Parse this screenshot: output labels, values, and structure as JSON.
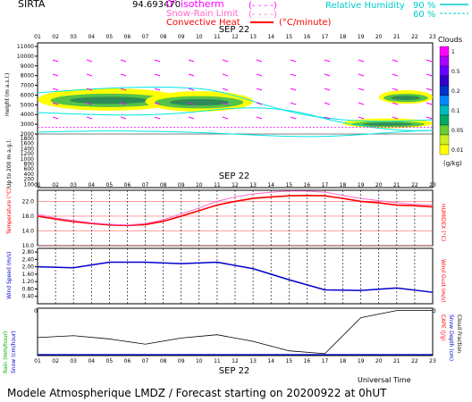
{
  "header": {
    "site": "SIRTA",
    "coord": "94.693470",
    "legend_isotherm": "0° isotherm",
    "legend_snow_rain": "Snow-Rain Limit",
    "legend_convective": "Convective Heat",
    "legend_convective_unit": "(°C/minute)",
    "legend_rh_label": "Relative Humidity",
    "legend_rh_90": "90 %",
    "legend_rh_60": "60 %"
  },
  "footer": {
    "title": "Modele Atmospherique LMDZ / Forecast starting on 20200922 at 0hUT",
    "universal_time": "Universal Time"
  },
  "colors": {
    "cyan": "#00e5e5",
    "magenta": "#ff00ff",
    "red": "#ff0000",
    "blue": "#0000cc",
    "yellow": "#ffff00",
    "green_light": "#55c24a",
    "green_dark": "#2e8b57",
    "bg": "#ffffff"
  },
  "chart_data": [
    {
      "type": "heatmap",
      "title": "SEP 22",
      "hours": [
        "01",
        "02",
        "03",
        "04",
        "05",
        "06",
        "07",
        "08",
        "09",
        "10",
        "11",
        "12",
        "13",
        "14",
        "15",
        "16",
        "17",
        "18",
        "19",
        "20",
        "21",
        "22",
        "23"
      ],
      "ylabel": "Height (m a.s.l.)",
      "ylabel_low": "Up to 200 m a.g.l.",
      "yticks_upper": [
        "11000",
        "10000",
        "9000",
        "8000",
        "7000",
        "6000",
        "5000",
        "4000",
        "3000",
        "2000"
      ],
      "yticks_lower": [
        "1800",
        "1600",
        "1400",
        "1200",
        "1000",
        "800",
        "600",
        "400",
        "200",
        "100"
      ],
      "isotherm_0c_m": 2700,
      "colorbar": {
        "label": "Clouds",
        "unit": "(g/kg)",
        "ticks": [
          "1",
          "0.5",
          "0.2",
          "0.1",
          "0.05",
          "0.01"
        ]
      },
      "cloud_layers": [
        {
          "from_hour": 1,
          "to_hour": 9,
          "base_m": 4400,
          "top_m": 6700
        },
        {
          "from_hour": 7,
          "to_hour": 13,
          "base_m": 4300,
          "top_m": 6400
        },
        {
          "from_hour": 18,
          "to_hour": 23,
          "base_m": 2600,
          "top_m": 3600
        },
        {
          "from_hour": 20,
          "to_hour": 23,
          "base_m": 5100,
          "top_m": 6500
        }
      ]
    },
    {
      "type": "line",
      "title": "SEP 22",
      "ylabel": "Temperature (°C)",
      "ylabel_right": "HUMIDEX (°C)",
      "yticks": [
        "10.0",
        "14.0",
        "18.0",
        "22.0"
      ],
      "ylim": [
        10,
        25
      ],
      "x": [
        1,
        2,
        3,
        4,
        5,
        6,
        7,
        8,
        9,
        10,
        11,
        12,
        13,
        14,
        15,
        16,
        17,
        18,
        19,
        20,
        21,
        22,
        23
      ],
      "series": [
        {
          "name": "Temperature",
          "values": [
            18.0,
            17.2,
            16.5,
            16.0,
            15.6,
            15.5,
            15.7,
            16.6,
            18.0,
            19.5,
            21.0,
            22.0,
            22.8,
            23.2,
            23.5,
            23.6,
            23.5,
            22.8,
            22.0,
            21.6,
            21.0,
            20.8,
            20.5
          ]
        },
        {
          "name": "HUMIDEX",
          "values": [
            18.5,
            17.5,
            16.8,
            16.2,
            15.8,
            15.6,
            16.0,
            17.0,
            18.6,
            20.2,
            22.0,
            23.2,
            24.0,
            24.5,
            24.8,
            24.8,
            24.5,
            23.6,
            22.8,
            22.2,
            21.6,
            21.2,
            21.0
          ]
        }
      ]
    },
    {
      "type": "line",
      "ylabel": "Wind Speed (m/s)",
      "ylabel_right": "Wind Gust (m/s)",
      "yticks": [
        "0.40",
        "0.80",
        "1.20",
        "1.60",
        "2.00",
        "2.40",
        "2.80"
      ],
      "ylim": [
        0,
        3.0
      ],
      "x": [
        1,
        3,
        5,
        7,
        9,
        11,
        13,
        15,
        17,
        19,
        21,
        23
      ],
      "series": [
        {
          "name": "Wind Speed",
          "values": [
            2.0,
            1.95,
            2.25,
            2.25,
            2.17,
            2.25,
            1.9,
            1.3,
            0.75,
            0.72,
            0.85,
            0.62
          ]
        }
      ]
    },
    {
      "type": "line",
      "title": "SEP 22",
      "ylabel": "Rain (mm/hour)",
      "ylabel2": "Snow (cm/hour)",
      "ylabel_right": "CAPE (J/g)",
      "ylabel_right2": "Snow Depth (cm)",
      "ylabel_right3": "Cloud Fraction",
      "x": [
        1,
        3,
        5,
        7,
        9,
        11,
        13,
        15,
        17,
        19,
        21,
        23
      ],
      "series": [
        {
          "name": "Cloud Fraction",
          "values": [
            0.38,
            0.42,
            0.35,
            0.24,
            0.37,
            0.44,
            0.3,
            0.1,
            0.04,
            0.8,
            0.95,
            0.95
          ]
        }
      ],
      "ylim": [
        0,
        1
      ]
    }
  ]
}
